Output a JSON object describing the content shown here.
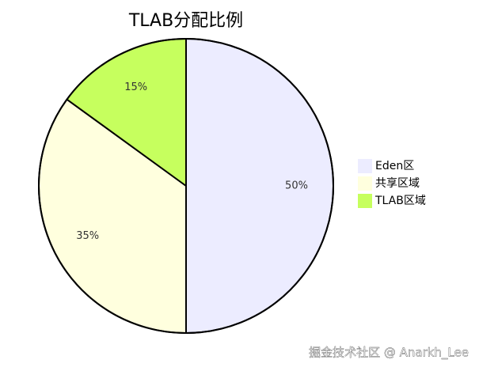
{
  "chart_data": {
    "type": "pie",
    "title": "TLAB分配比例",
    "categories": [
      "Eden区",
      "共享区域",
      "TLAB区域"
    ],
    "values": [
      50,
      35,
      15
    ],
    "value_labels": [
      "50%",
      "35%",
      "15%"
    ],
    "colors": [
      "#ececff",
      "#ffffde",
      "#c6ff5e"
    ],
    "legend": "right"
  },
  "watermark": "掘金技术社区 @ Anarkh_Lee"
}
